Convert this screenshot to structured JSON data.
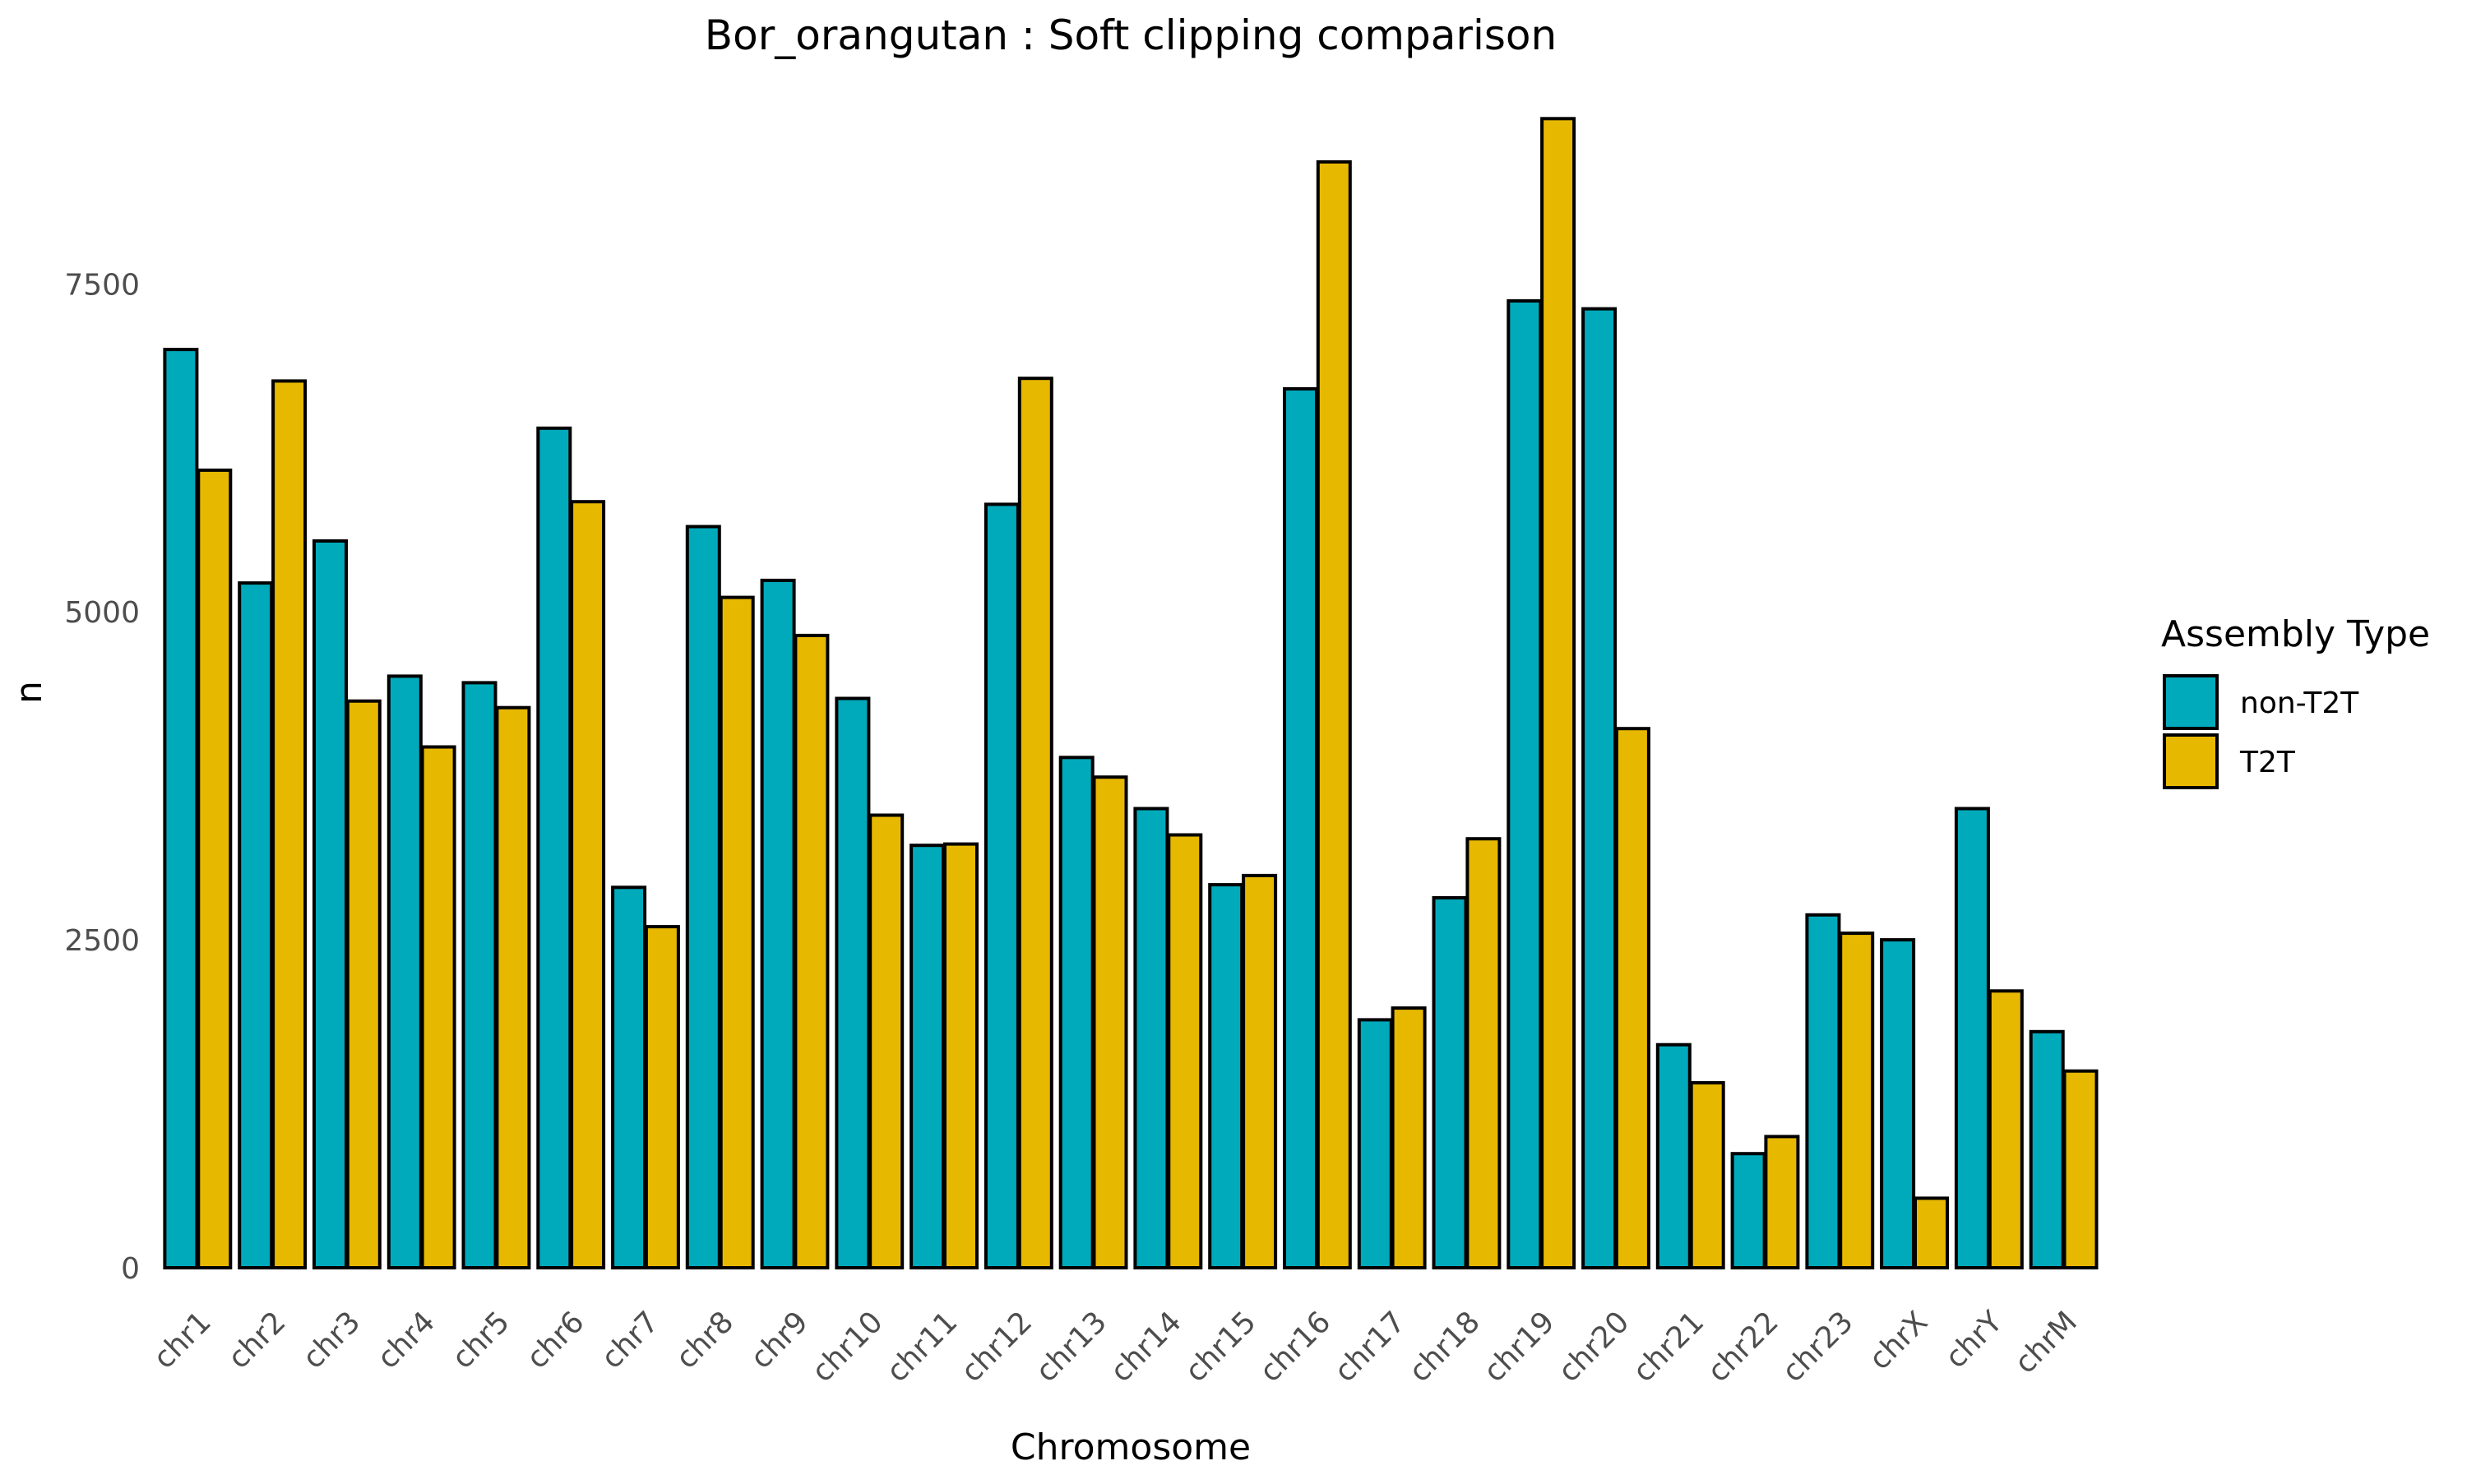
{
  "chart_data": {
    "type": "bar",
    "title": "Bor_orangutan : Soft clipping comparison",
    "xlabel": "Chromosome",
    "ylabel": "n",
    "categories": [
      "chr1",
      "chr2",
      "chr3",
      "chr4",
      "chr5",
      "chr6",
      "chr7",
      "chr8",
      "chr9",
      "chr10",
      "chr11",
      "chr12",
      "chr13",
      "chr14",
      "chr15",
      "chr16",
      "chr17",
      "chr18",
      "chr19",
      "chr20",
      "chr21",
      "chr22",
      "chr23",
      "chrX",
      "chrY",
      "chrM"
    ],
    "series": [
      {
        "name": "non-T2T",
        "color": "#00AABB",
        "values": [
          7000,
          5220,
          5540,
          4510,
          4460,
          6400,
          2900,
          5650,
          5240,
          4340,
          3220,
          5820,
          3890,
          3500,
          2920,
          6700,
          1890,
          2820,
          7370,
          7310,
          1700,
          870,
          2690,
          2500,
          3500,
          1800
        ]
      },
      {
        "name": "T2T",
        "color": "#E7B800",
        "values": [
          6080,
          6760,
          4320,
          3970,
          4270,
          5840,
          2600,
          5110,
          4820,
          3450,
          3230,
          6780,
          3740,
          3300,
          2990,
          8430,
          1980,
          3270,
          8760,
          4110,
          1410,
          1000,
          2550,
          530,
          2110,
          1500
        ]
      }
    ],
    "yticks": [
      0,
      2500,
      5000,
      7500
    ],
    "ylim": [
      0,
      9100
    ],
    "legend_title": "Assembly Type",
    "legend_position": "right",
    "grid": false
  }
}
